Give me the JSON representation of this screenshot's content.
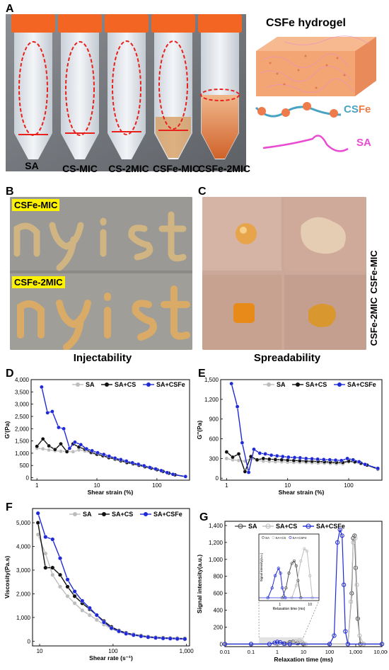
{
  "panels": {
    "A": "A",
    "B": "B",
    "C": "C",
    "D": "D",
    "E": "E",
    "F": "F",
    "G": "G"
  },
  "panelA": {
    "tubes": [
      "SA",
      "CS-MIC",
      "CS-2MIC",
      "CSFe-MIC",
      "CSFe-2MIC"
    ],
    "schematic_title": "CSFe hydrogel",
    "legend_csfe": "CSFe",
    "legend_csfe_cs": "CS",
    "legend_csfe_fe": "Fe",
    "legend_sa": "SA",
    "colors": {
      "cap": "#f26522",
      "tube_body": "#e9eef3",
      "ellipse": "#e8211c",
      "orange_gel": "#e38a4c",
      "sa_line": "#e94bd1",
      "cs_text": "#4aa3c3",
      "fe_text": "#ef7a4a"
    }
  },
  "panelB": {
    "tag_top": "CSFe-MIC",
    "tag_bottom": "CSFe-2MIC",
    "caption": "Injectability"
  },
  "panelC": {
    "side_top": "CSFe-MIC",
    "side_bottom": "CSFe-2MIC",
    "caption": "Spreadability"
  },
  "chart_data": [
    {
      "id": "D",
      "type": "line",
      "xlabel": "Shear strain (%)",
      "ylabel": "G'(Pa)",
      "xscale": "log",
      "xlim": [
        0.8,
        350
      ],
      "ylim": [
        -100,
        4000
      ],
      "xticks": [
        1,
        10,
        100
      ],
      "xtick_labels": [
        "1",
        "10",
        "100"
      ],
      "yticks": [
        0,
        500,
        1000,
        1500,
        2000,
        2500,
        3000,
        3500,
        4000
      ],
      "ytick_labels": [
        "0",
        "500",
        "1,000",
        "1,500",
        "2,000",
        "2,500",
        "3,000",
        "3,500",
        "4,000"
      ],
      "legend_position": "top",
      "series": [
        {
          "name": "SA",
          "color": "#bdbdbd",
          "x": [
            1.0,
            1.26,
            1.58,
            2.0,
            2.5,
            3.16,
            4.0,
            5.0,
            6.3,
            8.0,
            10,
            12.6,
            15.8,
            20,
            25,
            31.6,
            40,
            50,
            63,
            80,
            100,
            126,
            158,
            200,
            300
          ],
          "y": [
            1200,
            1180,
            1130,
            1100,
            1080,
            1070,
            1060,
            1130,
            1090,
            1000,
            940,
            880,
            810,
            750,
            680,
            610,
            560,
            500,
            440,
            380,
            320,
            250,
            180,
            110,
            40
          ]
        },
        {
          "name": "SA+CS",
          "color": "#111111",
          "x": [
            1.0,
            1.26,
            1.58,
            2.0,
            2.5,
            3.16,
            4.0,
            5.0,
            6.3,
            8.0,
            10,
            12.6,
            15.8,
            20,
            25,
            31.6,
            40,
            50,
            63,
            80,
            100,
            126,
            158,
            200,
            300
          ],
          "y": [
            1280,
            1580,
            1300,
            1150,
            1380,
            1060,
            1380,
            1250,
            1160,
            1040,
            960,
            900,
            820,
            760,
            690,
            620,
            570,
            510,
            450,
            390,
            330,
            260,
            190,
            120,
            45
          ]
        },
        {
          "name": "SA+CSFe",
          "color": "#1f2ad6",
          "x": [
            1.2,
            1.5,
            1.8,
            2.3,
            2.8,
            3.5,
            4.3,
            5.4,
            6.7,
            8.3,
            10.3,
            13,
            16,
            20,
            25,
            31,
            39,
            49,
            61,
            76,
            95,
            118,
            148,
            185,
            300
          ],
          "y": [
            3700,
            2650,
            2700,
            2050,
            2000,
            1200,
            1450,
            1350,
            1180,
            1100,
            1020,
            950,
            880,
            800,
            740,
            680,
            610,
            550,
            490,
            420,
            360,
            290,
            210,
            140,
            50
          ]
        }
      ]
    },
    {
      "id": "E",
      "type": "line",
      "xlabel": "Shear strain (%)",
      "ylabel": "G''(Pa)",
      "xscale": "log",
      "xlim": [
        0.8,
        350
      ],
      "ylim": [
        -30,
        1500
      ],
      "xticks": [
        1,
        10,
        100
      ],
      "xtick_labels": [
        "1",
        "10",
        "100"
      ],
      "yticks": [
        0,
        300,
        600,
        900,
        1200,
        1500
      ],
      "ytick_labels": [
        "0",
        "300",
        "600",
        "900",
        "1,200",
        "1,500"
      ],
      "legend_position": "top",
      "series": [
        {
          "name": "SA",
          "color": "#bdbdbd",
          "x": [
            1.0,
            1.26,
            1.58,
            2.0,
            2.5,
            3.16,
            4.0,
            5.0,
            6.3,
            8.0,
            10,
            12.6,
            15.8,
            20,
            25,
            31.6,
            40,
            50,
            63,
            80,
            100,
            126,
            158,
            200,
            300
          ],
          "y": [
            300,
            280,
            270,
            260,
            300,
            270,
            260,
            255,
            250,
            250,
            245,
            240,
            240,
            238,
            235,
            230,
            230,
            225,
            220,
            220,
            250,
            240,
            220,
            200,
            150
          ]
        },
        {
          "name": "SA+CS",
          "color": "#111111",
          "x": [
            1.0,
            1.26,
            1.58,
            2.0,
            2.5,
            3.16,
            4.0,
            5.0,
            6.3,
            8.0,
            10,
            12.6,
            15.8,
            20,
            25,
            31.6,
            40,
            50,
            63,
            80,
            100,
            126,
            158,
            200,
            300
          ],
          "y": [
            400,
            320,
            370,
            100,
            330,
            280,
            300,
            290,
            285,
            280,
            275,
            270,
            265,
            260,
            258,
            255,
            250,
            245,
            240,
            240,
            260,
            250,
            230,
            200,
            140
          ]
        },
        {
          "name": "SA+CSFe",
          "color": "#1f2ad6",
          "x": [
            1.2,
            1.5,
            1.8,
            2.3,
            2.8,
            3.5,
            4.3,
            5.4,
            6.7,
            8.3,
            10.3,
            13,
            16,
            20,
            25,
            31,
            39,
            49,
            61,
            76,
            95,
            118,
            148,
            185,
            300
          ],
          "y": [
            1440,
            1090,
            540,
            90,
            440,
            380,
            370,
            350,
            340,
            330,
            320,
            315,
            310,
            300,
            295,
            290,
            285,
            280,
            275,
            270,
            300,
            280,
            250,
            210,
            150
          ]
        }
      ]
    },
    {
      "id": "F",
      "type": "line",
      "xlabel": "Shear rate (s⁻¹)",
      "ylabel": "Viscosity(Pa.s)",
      "xscale": "log",
      "xlim": [
        8,
        1100
      ],
      "ylim": [
        -200,
        5600
      ],
      "xticks": [
        10,
        100,
        1000
      ],
      "xtick_labels": [
        "10",
        "100",
        "1,000"
      ],
      "yticks": [
        0,
        1000,
        2000,
        3000,
        4000,
        5000
      ],
      "ytick_labels": [
        "0",
        "1,000",
        "2,000",
        "3,000",
        "4,000",
        "5,000"
      ],
      "legend_position": "top",
      "series": [
        {
          "name": "SA",
          "color": "#bdbdbd",
          "x": [
            9.5,
            12,
            15,
            19,
            24,
            30,
            38,
            48,
            60,
            75,
            95,
            120,
            150,
            190,
            240,
            300,
            380,
            480,
            600,
            750,
            950
          ],
          "y": [
            4500,
            3700,
            2800,
            2300,
            1900,
            1600,
            1300,
            1100,
            900,
            700,
            520,
            400,
            300,
            240,
            200,
            160,
            130,
            110,
            100,
            90,
            80
          ]
        },
        {
          "name": "SA+CS",
          "color": "#111111",
          "x": [
            9.5,
            12,
            15,
            19,
            24,
            30,
            38,
            48,
            60,
            75,
            95,
            120,
            150,
            190,
            240,
            300,
            380,
            480,
            600,
            750,
            950
          ],
          "y": [
            5000,
            3100,
            3100,
            2800,
            2300,
            1900,
            1600,
            1350,
            1100,
            850,
            600,
            450,
            350,
            280,
            230,
            190,
            160,
            140,
            130,
            120,
            110
          ]
        },
        {
          "name": "SA+CSFe",
          "color": "#1f2ad6",
          "x": [
            9.5,
            12,
            15,
            19,
            24,
            30,
            38,
            48,
            60,
            75,
            95,
            120,
            150,
            190,
            240,
            300,
            380,
            480,
            600,
            750,
            950
          ],
          "y": [
            5400,
            4400,
            4300,
            3500,
            2600,
            2100,
            1700,
            1400,
            1100,
            800,
            550,
            420,
            320,
            260,
            210,
            170,
            140,
            120,
            110,
            100,
            90
          ]
        }
      ]
    },
    {
      "id": "G",
      "type": "line",
      "xlabel": "Relaxation time (ms)",
      "ylabel": "Signal intensity(a.u.)",
      "xscale": "log",
      "xlim": [
        0.01,
        10000
      ],
      "ylim": [
        -30,
        1450
      ],
      "xticks": [
        0.01,
        0.1,
        1,
        10,
        100,
        1000,
        10000
      ],
      "xtick_labels": [
        "0.01",
        "0.1",
        "1",
        "10",
        "100",
        "1,000",
        "10,000"
      ],
      "yticks": [
        0,
        200,
        400,
        600,
        800,
        1000,
        1200,
        1400
      ],
      "ytick_labels": [
        "0",
        "200",
        "400",
        "600",
        "800",
        "1,000",
        "1,200",
        "1,400"
      ],
      "legend_position": "top",
      "series": [
        {
          "name": "SA",
          "color": "#555555",
          "x": [
            0.01,
            0.1,
            1,
            2,
            3,
            4,
            6,
            10,
            100,
            500,
            700,
            800,
            900,
            1000,
            1200,
            1500,
            2000,
            10000
          ],
          "y": [
            0,
            0,
            0,
            5,
            20,
            25,
            10,
            0,
            0,
            0,
            600,
            1250,
            1280,
            900,
            300,
            0,
            0,
            0
          ]
        },
        {
          "name": "SA+CS",
          "color": "#bdbdbd",
          "x": [
            0.01,
            0.1,
            1,
            3,
            5,
            7,
            9,
            12,
            100,
            500,
            650,
            800,
            950,
            1100,
            1400,
            2000,
            10000
          ],
          "y": [
            0,
            0,
            0,
            10,
            30,
            40,
            20,
            0,
            0,
            0,
            500,
            1200,
            1250,
            700,
            100,
            0,
            0
          ]
        },
        {
          "name": "SA+CSFe",
          "color": "#1f2ad6",
          "x": [
            0.01,
            0.1,
            0.5,
            0.8,
            1.0,
            1.3,
            1.8,
            3,
            100,
            150,
            200,
            250,
            300,
            350,
            400,
            500,
            10000
          ],
          "y": [
            0,
            0,
            0,
            15,
            25,
            20,
            5,
            0,
            0,
            100,
            1200,
            1350,
            1280,
            700,
            150,
            0,
            0
          ]
        }
      ],
      "inset": {
        "xlabel": "Relaxation time (ms)",
        "ylabel": "Signal intensity(a.u.)",
        "xtick_labels": [
          "1",
          "10"
        ],
        "legend": [
          "SA",
          "SA+CS",
          "SA+CSFe"
        ]
      }
    }
  ]
}
